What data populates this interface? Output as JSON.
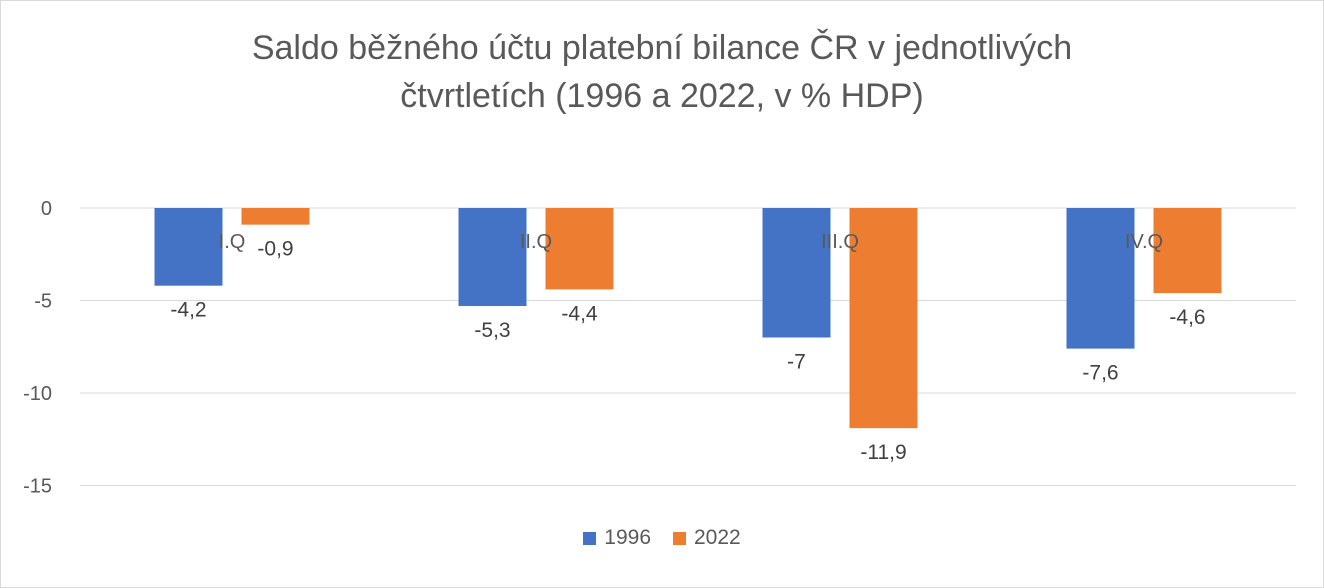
{
  "colors": {
    "series_1996": "#4472C4",
    "series_2022": "#ED7D31",
    "grid": "#d9d9d9",
    "text": "#595959"
  },
  "chart_data": {
    "type": "bar",
    "title": "Saldo běžného účtu platební bilance ČR v jednotlivých čtvrtletích (1996 a 2022, v % HDP)",
    "title_lines": [
      "Saldo běžného účtu platební bilance ČR v jednotlivých",
      "čtvrtletích (1996 a 2022, v % HDP)"
    ],
    "categories": [
      "I.Q",
      "II.Q",
      "III.Q",
      "IV.Q"
    ],
    "series": [
      {
        "name": "1996",
        "values": [
          -4.2,
          -5.3,
          -7,
          -7.6
        ],
        "labels": [
          "-4,2",
          "-5,3",
          "-7",
          "-7,6"
        ]
      },
      {
        "name": "2022",
        "values": [
          -0.9,
          -4.4,
          -11.9,
          -4.6
        ],
        "labels": [
          "-0,9",
          "-4,4",
          "-11,9",
          "-4,6"
        ]
      }
    ],
    "yticks": [
      0,
      -5,
      -10,
      -15
    ],
    "ylim": [
      -15,
      0
    ],
    "grid": true,
    "legend": "bottom"
  }
}
